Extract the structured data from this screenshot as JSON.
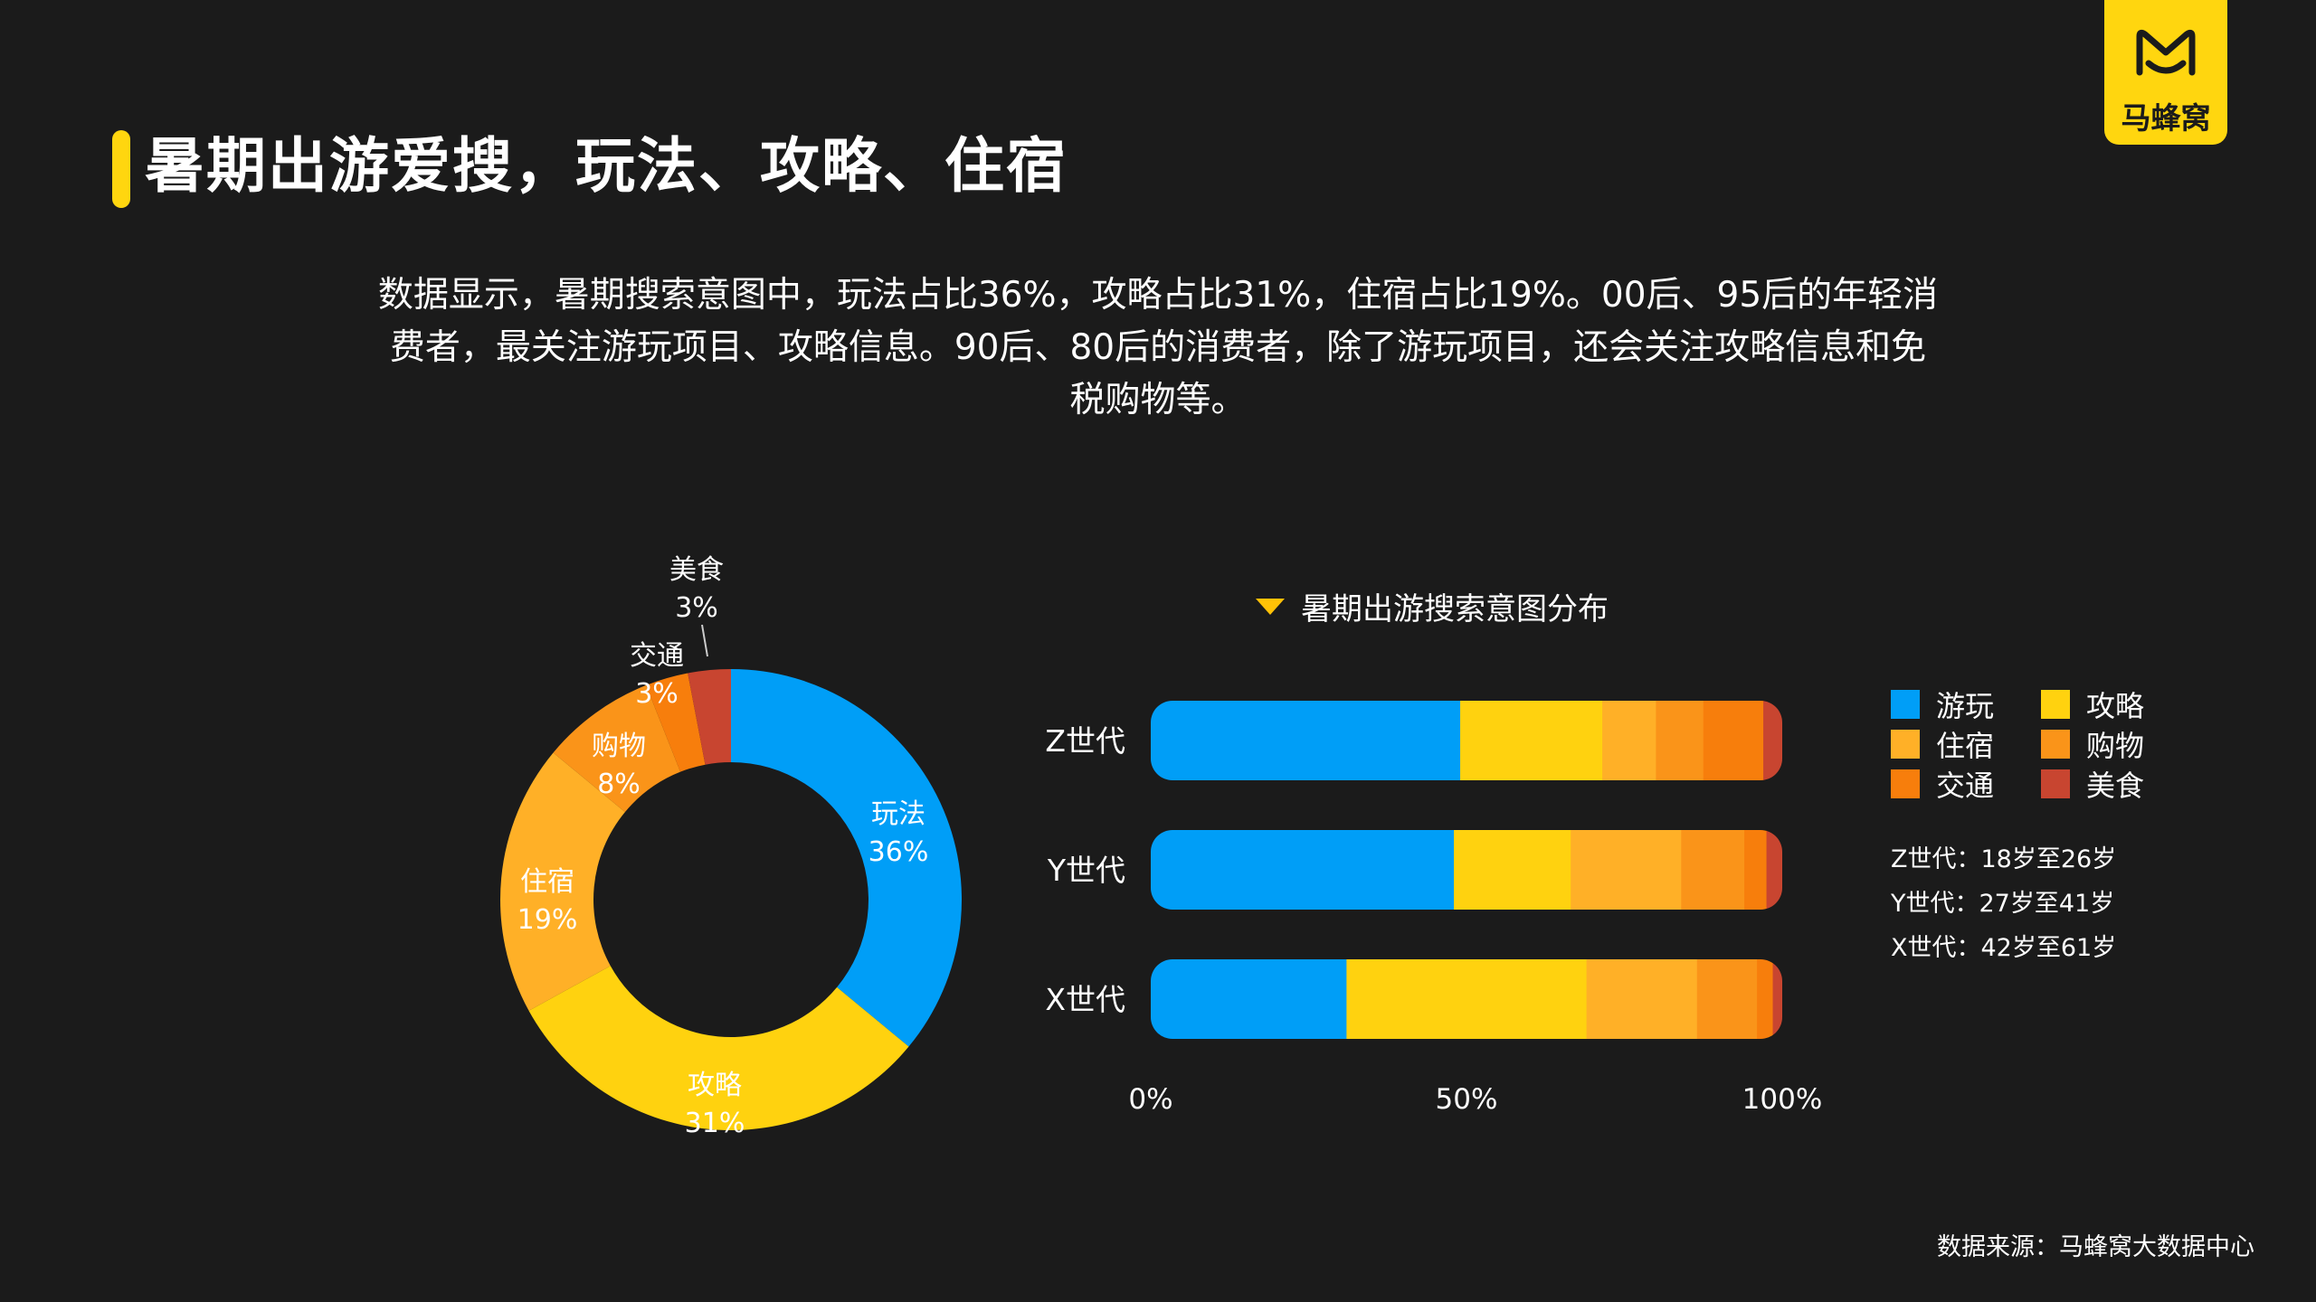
{
  "title": "暑期出游爱搜，玩法、攻略、住宿",
  "logo": {
    "text": "马蜂窝"
  },
  "description": [
    "数据显示，暑期搜索意图中，玩法占比36%，攻略占比31%，住宿占比19%。00后、95后的年轻消",
    "费者，最关注游玩项目、攻略信息。90后、80后的消费者，除了游玩项目，还会关注攻略信息和免",
    "税购物等。"
  ],
  "source": "数据来源：马蜂窝大数据中心",
  "colors": {
    "accent": "#ffd60f",
    "background": "#1b1b1b",
    "blue": "#009ef7",
    "yellow": "#ffd20f",
    "light_orange": "#ffb027",
    "orange": "#fa9419",
    "dark_orange": "#f77e0c",
    "red": "#c84530"
  },
  "chart_data": [
    {
      "type": "pie",
      "donut": true,
      "slices": [
        {
          "label": "玩法",
          "value": 36,
          "value_label": "36%",
          "color": "#009ef7"
        },
        {
          "label": "攻略",
          "value": 31,
          "value_label": "31%",
          "color": "#ffd20f"
        },
        {
          "label": "住宿",
          "value": 19,
          "value_label": "19%",
          "color": "#ffb027"
        },
        {
          "label": "购物",
          "value": 8,
          "value_label": "8%",
          "color": "#fa9419"
        },
        {
          "label": "交通",
          "value": 3,
          "value_label": "3%",
          "color": "#f77e0c"
        },
        {
          "label": "美食",
          "value": 3,
          "value_label": "3%",
          "color": "#c84530"
        }
      ]
    },
    {
      "type": "bar",
      "orientation": "horizontal",
      "stacked": true,
      "title": "暑期出游搜索意图分布",
      "categories": [
        "Z世代",
        "Y世代",
        "X世代"
      ],
      "series": [
        {
          "name": "游玩",
          "color": "#009ef7",
          "values": [
            49,
            48,
            31
          ]
        },
        {
          "name": "攻略",
          "color": "#ffd20f",
          "values": [
            22.5,
            18.5,
            38
          ]
        },
        {
          "name": "住宿",
          "color": "#ffb027",
          "values": [
            8.5,
            17.5,
            17.5
          ]
        },
        {
          "name": "购物",
          "color": "#fa9419",
          "values": [
            7.5,
            10,
            9.5
          ]
        },
        {
          "name": "交通",
          "color": "#f77e0c",
          "values": [
            9.5,
            3.5,
            2.5
          ]
        },
        {
          "name": "美食",
          "color": "#c84530",
          "values": [
            3,
            2.5,
            1.5
          ]
        }
      ],
      "x_ticks": [
        "0%",
        "50%",
        "100%"
      ],
      "xlim": [
        0,
        100
      ],
      "legend_position": "right",
      "grid": false
    }
  ],
  "legend": [
    {
      "label": "游玩",
      "color": "#009ef7"
    },
    {
      "label": "攻略",
      "color": "#ffd20f"
    },
    {
      "label": "住宿",
      "color": "#ffb027"
    },
    {
      "label": "购物",
      "color": "#fa9419"
    },
    {
      "label": "交通",
      "color": "#f77e0c"
    },
    {
      "label": "美食",
      "color": "#c84530"
    }
  ],
  "generation_notes": [
    "Z世代：18岁至26岁",
    "Y世代：27岁至41岁",
    "X世代：42岁至61岁"
  ]
}
